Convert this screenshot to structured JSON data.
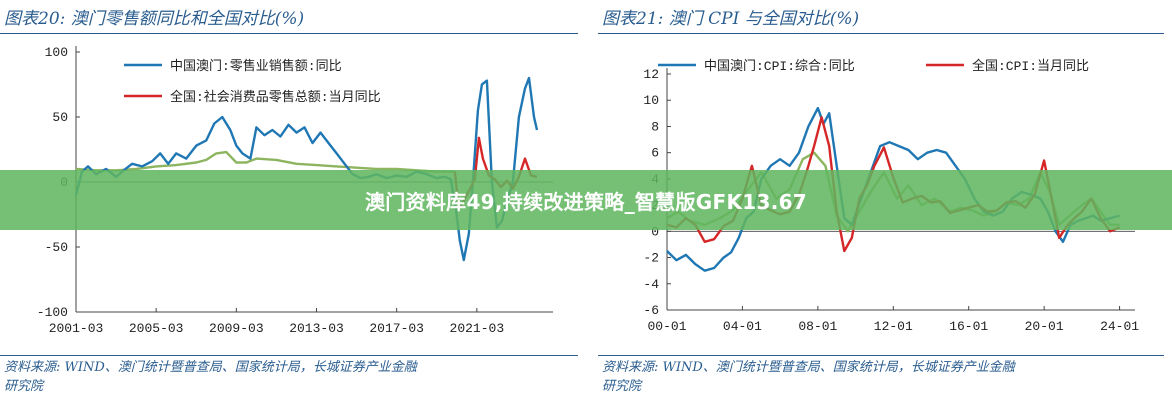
{
  "banner": {
    "text": "澳门资料库49,持续改进策略_智慧版GFK13.67"
  },
  "colors": {
    "blue": "#1f77b4",
    "red": "#d62728",
    "green": "#8db560",
    "title": "#2a5d8f"
  },
  "charts": [
    {
      "fig_title": "图表20:  澳门零售额同比和全国对比(%)",
      "source_lines": [
        "资料来源:  WIND、澳门统计暨普查局、国家统计局，长城证券产业金融",
        "研究院"
      ],
      "legend": [
        "中国澳门:零售业销售额:同比",
        "全国:社会消费品零售总额:当月同比"
      ],
      "y_ticks": [
        "100",
        "50",
        "0",
        "-50",
        "-100"
      ],
      "x_ticks": [
        "2001-03",
        "2005-03",
        "2009-03",
        "2013-03",
        "2017-03",
        "2021-03"
      ]
    },
    {
      "fig_title": "图表21:  澳门 CPI 与全国对比(%)",
      "source_lines": [
        "资料来源:  WIND、澳门统计暨普查局、国家统计局，长城证券产业金融",
        "研究院"
      ],
      "legend": [
        "中国澳门:CPI:综合:同比",
        "全国:CPI:当月同比"
      ],
      "y_ticks": [
        "12",
        "10",
        "8",
        "6",
        "4",
        "2",
        "0",
        "-2",
        "-4",
        "-6"
      ],
      "x_ticks": [
        "00-01",
        "04-01",
        "08-01",
        "12-01",
        "16-01",
        "20-01",
        "24-01"
      ]
    }
  ],
  "chart_data": [
    {
      "type": "line",
      "title": "澳门零售额同比和全国对比(%)",
      "xlabel": "",
      "ylabel": "",
      "xlim": [
        2001.0,
        2024.5
      ],
      "ylim": [
        -100,
        100
      ],
      "legend_position": "top-left",
      "grid": false,
      "series": [
        {
          "name": "中国澳门:零售业销售额:同比",
          "color": "#1f77b4",
          "x": [
            2001.0,
            2001.3,
            2001.6,
            2002.0,
            2002.5,
            2003.0,
            2003.3,
            2003.8,
            2004.3,
            2004.8,
            2005.2,
            2005.6,
            2006.0,
            2006.5,
            2007.0,
            2007.5,
            2007.9,
            2008.3,
            2008.7,
            2009.0,
            2009.3,
            2009.7,
            2010.0,
            2010.4,
            2010.8,
            2011.2,
            2011.6,
            2012.0,
            2012.4,
            2012.8,
            2013.2,
            2013.6,
            2014.0,
            2014.4,
            2014.8,
            2015.2,
            2015.6,
            2016.0,
            2016.5,
            2017.0,
            2017.5,
            2018.0,
            2018.5,
            2019.0,
            2019.4,
            2019.7,
            2019.95,
            2020.15,
            2020.35,
            2020.6,
            2020.85,
            2021.05,
            2021.25,
            2021.5,
            2021.75,
            2022.0,
            2022.25,
            2022.5,
            2022.8,
            2023.1,
            2023.4,
            2023.6,
            2023.85,
            2024.0
          ],
          "y": [
            -10,
            8,
            12,
            6,
            10,
            4,
            8,
            14,
            12,
            16,
            22,
            14,
            22,
            18,
            28,
            32,
            45,
            50,
            40,
            28,
            22,
            18,
            42,
            36,
            40,
            35,
            44,
            38,
            42,
            30,
            38,
            30,
            22,
            14,
            6,
            3,
            4,
            6,
            3,
            5,
            4,
            8,
            6,
            3,
            4,
            2,
            -20,
            -45,
            -60,
            -40,
            10,
            55,
            75,
            78,
            0,
            -35,
            -30,
            -15,
            0,
            50,
            72,
            80,
            50,
            40
          ]
        },
        {
          "name": "全国:社会消费品零售总额:当月同比",
          "color": "#d62728",
          "x": [
            2019.9,
            2020.1,
            2020.3,
            2020.6,
            2020.9,
            2021.1,
            2021.3,
            2021.6,
            2021.9,
            2022.2,
            2022.5,
            2022.8,
            2023.1,
            2023.4,
            2023.7,
            2024.0
          ],
          "y": [
            8,
            -20,
            -16,
            -7,
            2,
            34,
            18,
            5,
            2,
            -4,
            1,
            -5,
            4,
            18,
            5,
            4
          ]
        },
        {
          "name": "",
          "color": "#8db560",
          "x": [
            2001.0,
            2002.0,
            2003.0,
            2004.0,
            2005.0,
            2006.0,
            2007.0,
            2007.5,
            2008.0,
            2008.5,
            2009.0,
            2009.5,
            2010.0,
            2011.0,
            2012.0,
            2013.0,
            2014.0,
            2015.0,
            2016.0,
            2017.0,
            2018.0,
            2019.0,
            2019.9
          ],
          "y": [
            10,
            9,
            9,
            10,
            12,
            13,
            15,
            17,
            22,
            23,
            15,
            15,
            18,
            17,
            14,
            13,
            12,
            11,
            10,
            10,
            9,
            8,
            8
          ]
        }
      ]
    },
    {
      "type": "line",
      "title": "澳门 CPI 与全国对比(%)",
      "xlabel": "",
      "ylabel": "",
      "xlim": [
        2000.0,
        2024.5
      ],
      "ylim": [
        -6,
        12
      ],
      "legend_position": "top",
      "grid": false,
      "series": [
        {
          "name": "中国澳门:CPI:综合:同比",
          "color": "#1f77b4",
          "x": [
            2000.0,
            2000.5,
            2001.0,
            2001.5,
            2002.0,
            2002.5,
            2003.0,
            2003.4,
            2003.8,
            2004.2,
            2004.6,
            2005.0,
            2005.5,
            2006.0,
            2006.5,
            2007.0,
            2007.5,
            2008.0,
            2008.3,
            2008.6,
            2009.0,
            2009.4,
            2009.8,
            2010.3,
            2010.8,
            2011.3,
            2011.8,
            2012.3,
            2012.8,
            2013.3,
            2013.8,
            2014.3,
            2014.8,
            2015.3,
            2015.8,
            2016.3,
            2016.8,
            2017.3,
            2017.8,
            2018.3,
            2018.8,
            2019.3,
            2019.8,
            2020.2,
            2020.6,
            2021.0,
            2021.4,
            2021.8,
            2022.2,
            2022.6,
            2023.0,
            2023.5,
            2024.0
          ],
          "y": [
            -1.5,
            -2.2,
            -1.8,
            -2.5,
            -3.0,
            -2.8,
            -2.0,
            -1.6,
            -0.5,
            1.0,
            1.5,
            4.0,
            5.0,
            5.5,
            5.0,
            6.0,
            8.0,
            9.4,
            8.2,
            9.0,
            5.0,
            1.0,
            0.5,
            2.5,
            4.5,
            6.5,
            6.8,
            6.5,
            6.2,
            5.5,
            6.0,
            6.2,
            6.0,
            5.0,
            4.0,
            2.5,
            1.5,
            1.2,
            1.5,
            2.5,
            3.0,
            2.8,
            2.5,
            1.5,
            0.0,
            -0.8,
            0.5,
            0.8,
            1.0,
            1.2,
            0.8,
            1.0,
            1.2
          ]
        },
        {
          "name": "全国:CPI:当月同比",
          "color": "#d62728",
          "x": [
            2000.0,
            2000.5,
            2001.0,
            2001.5,
            2002.0,
            2002.5,
            2003.0,
            2003.5,
            2004.0,
            2004.5,
            2005.0,
            2005.5,
            2006.0,
            2006.5,
            2007.0,
            2007.4,
            2007.8,
            2008.2,
            2008.6,
            2009.0,
            2009.4,
            2009.8,
            2010.2,
            2010.6,
            2011.0,
            2011.5,
            2012.0,
            2012.5,
            2013.0,
            2013.5,
            2014.0,
            2014.5,
            2015.0,
            2015.5,
            2016.0,
            2016.5,
            2017.0,
            2017.5,
            2018.0,
            2018.5,
            2019.0,
            2019.5,
            2020.0,
            2020.4,
            2020.8,
            2021.2,
            2021.6,
            2022.0,
            2022.5,
            2023.0,
            2023.5,
            2024.0
          ],
          "y": [
            0.5,
            0.3,
            1.0,
            0.5,
            -0.8,
            -0.6,
            0.4,
            0.8,
            2.5,
            5.0,
            2.0,
            1.6,
            1.3,
            1.5,
            2.8,
            4.5,
            6.5,
            8.7,
            6.5,
            1.5,
            -1.5,
            -0.5,
            2.5,
            3.5,
            5.0,
            6.4,
            4.1,
            2.2,
            2.5,
            2.7,
            2.2,
            2.3,
            1.4,
            1.6,
            1.8,
            2.0,
            1.5,
            1.6,
            2.2,
            2.3,
            1.8,
            2.8,
            5.4,
            2.5,
            -0.5,
            0.4,
            1.0,
            1.5,
            2.5,
            1.0,
            0.0,
            0.3
          ]
        },
        {
          "name": "",
          "color": "#8db560",
          "x": [
            2000.0,
            2000.6,
            2001.2,
            2002.0,
            2002.8,
            2003.5,
            2004.2,
            2005.0,
            2005.8,
            2006.5,
            2007.2,
            2007.8,
            2008.4,
            2009.0,
            2009.6,
            2010.2,
            2010.8,
            2011.5,
            2012.2,
            2012.8,
            2013.5,
            2014.2,
            2015.0,
            2015.6,
            2016.2,
            2016.8,
            2017.4,
            2018.0,
            2018.6,
            2019.2,
            2019.8,
            2020.3,
            2020.8,
            2021.2,
            2021.6,
            2022.0,
            2022.5,
            2023.0,
            2023.5,
            2024.0
          ],
          "y": [
            1.0,
            1.5,
            0.8,
            0.5,
            1.0,
            1.6,
            3.0,
            4.5,
            2.5,
            3.2,
            5.5,
            6.0,
            5.0,
            1.2,
            0.0,
            1.5,
            3.0,
            4.5,
            2.5,
            3.5,
            2.0,
            2.5,
            1.5,
            1.8,
            1.6,
            1.2,
            1.5,
            2.2,
            2.0,
            2.5,
            4.5,
            3.0,
            0.5,
            1.0,
            1.5,
            2.0,
            2.5,
            1.5,
            0.5,
            0.5
          ]
        }
      ]
    }
  ]
}
